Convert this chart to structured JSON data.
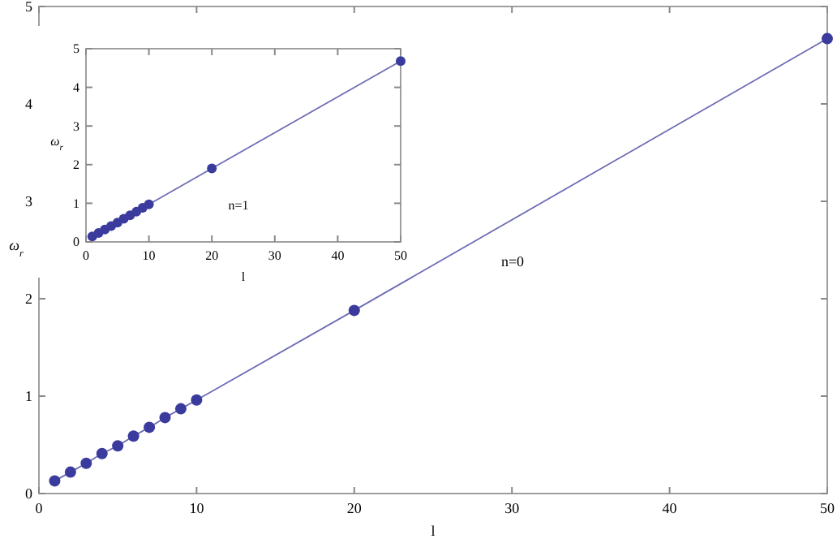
{
  "chart_data": [
    {
      "type": "line",
      "xlabel": "l",
      "ylabel": "ω$_{r}$",
      "x": [
        1,
        2,
        3,
        4,
        5,
        6,
        7,
        8,
        9,
        10,
        20,
        50
      ],
      "marker": "circle",
      "grid": false,
      "series": [
        {
          "color": "#3b3b9e",
          "values": [
            0.13,
            0.22,
            0.31,
            0.41,
            0.49,
            0.59,
            0.68,
            0.78,
            0.87,
            0.96,
            1.88,
            4.67
          ]
        }
      ],
      "xlim": [
        0,
        50
      ],
      "xticks": [
        0,
        10,
        20,
        30,
        40,
        50
      ],
      "ylim": [
        0,
        5
      ],
      "yticks": [
        0,
        1,
        2,
        3,
        4,
        5
      ],
      "annotations": [
        "n=0"
      ]
    },
    {
      "type": "line",
      "xlabel": "l",
      "ylabel": "ω$_{r}$",
      "x": [
        1,
        2,
        3,
        4,
        5,
        6,
        7,
        8,
        9,
        10,
        20,
        50
      ],
      "marker": "circle",
      "grid": false,
      "series": [
        {
          "color": "#3b3b9e",
          "values": [
            0.14,
            0.23,
            0.32,
            0.41,
            0.5,
            0.6,
            0.69,
            0.78,
            0.88,
            0.97,
            1.9,
            4.68
          ]
        }
      ],
      "xlim": [
        0,
        50
      ],
      "xticks": [
        0,
        10,
        20,
        30,
        40,
        50
      ],
      "ylim": [
        0,
        5
      ],
      "yticks": [
        0,
        1,
        2,
        3,
        4,
        5
      ],
      "annotations": [
        "n=1"
      ]
    }
  ]
}
